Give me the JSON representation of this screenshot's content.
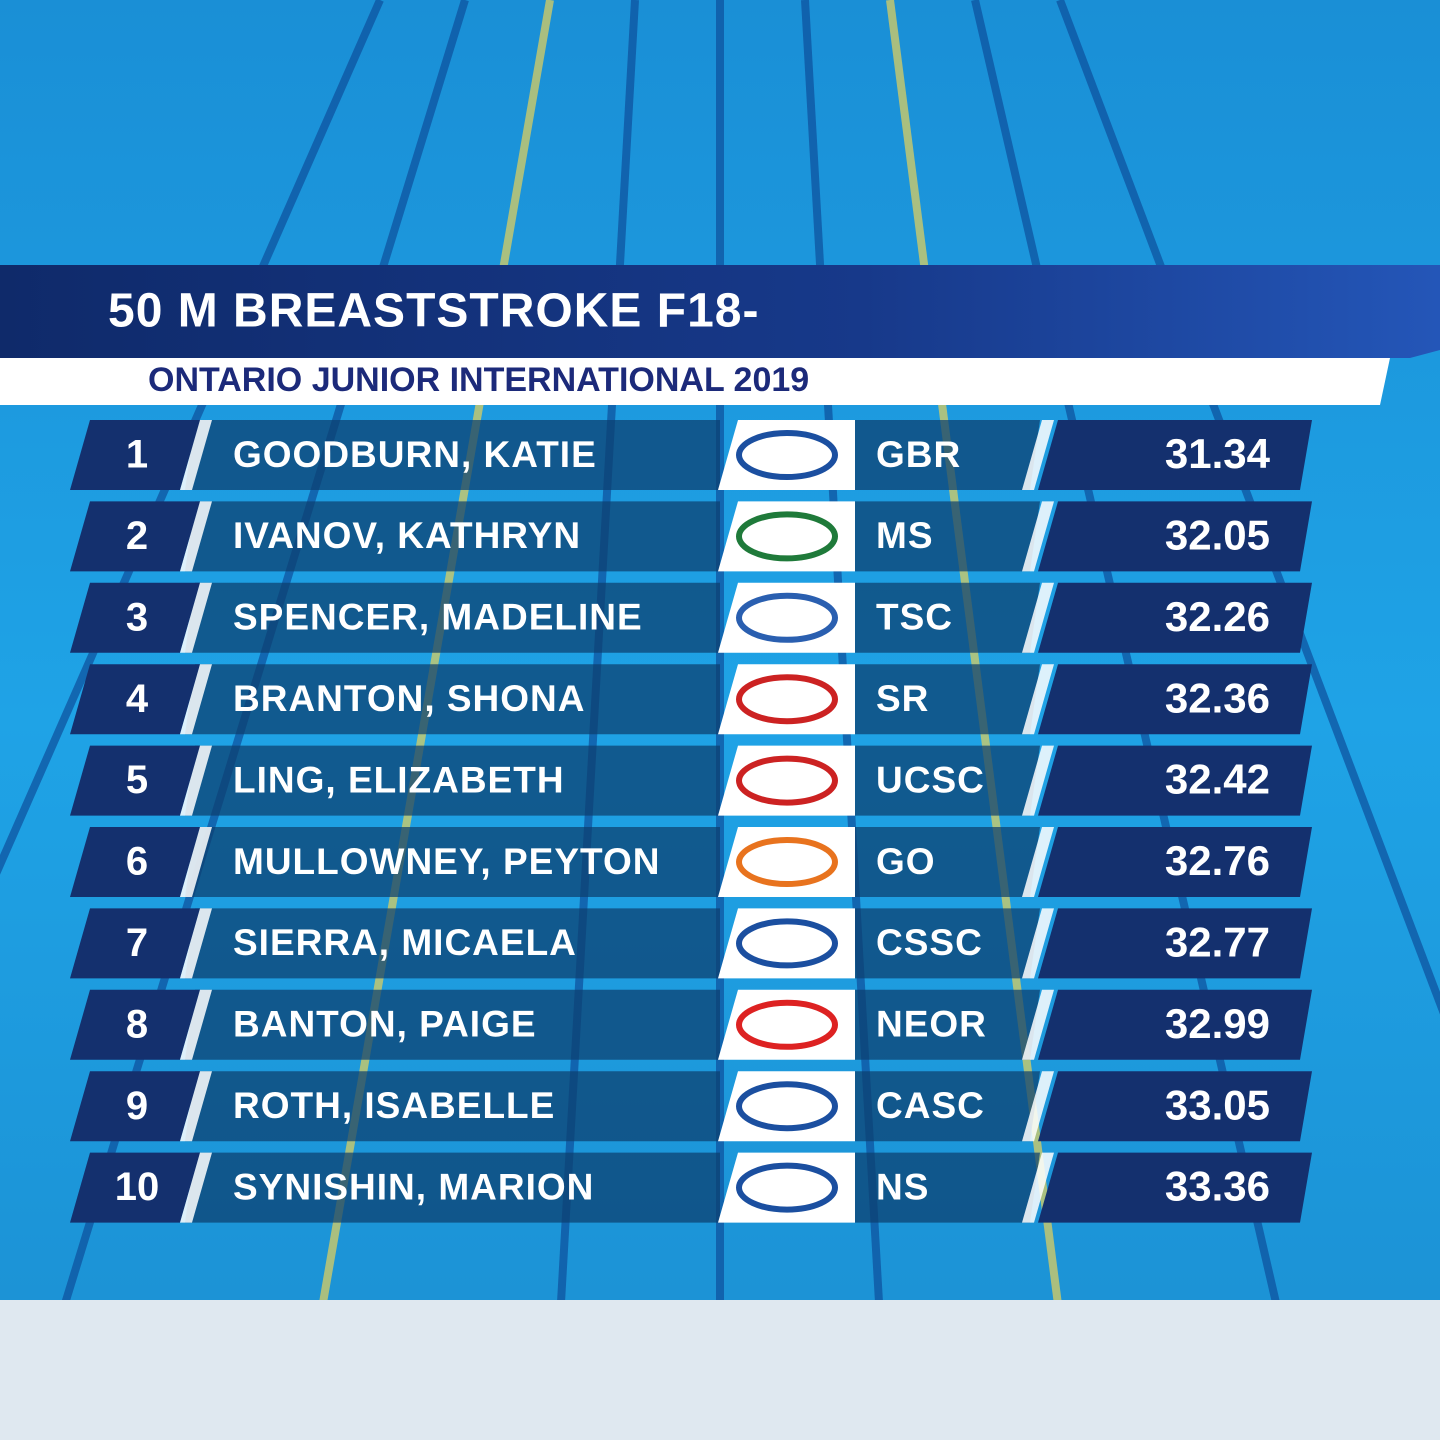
{
  "header": {
    "title": "50 M BREASTSTROKE F18-",
    "subtitle": "ONTARIO JUNIOR INTERNATIONAL 2019"
  },
  "results": [
    {
      "rank": 1,
      "name": "GOODBURN, KATIE",
      "club": "GBR",
      "time": 31.34
    },
    {
      "rank": 2,
      "name": "IVANOV, KATHRYN",
      "club": "MS",
      "time": 32.05
    },
    {
      "rank": 3,
      "name": "SPENCER, MADELINE",
      "club": "TSC",
      "time": 32.26
    },
    {
      "rank": 4,
      "name": "BRANTON, SHONA",
      "club": "SR",
      "time": 32.36
    },
    {
      "rank": 5,
      "name": "LING, ELIZABETH",
      "club": "UCSC",
      "time": 32.42
    },
    {
      "rank": 6,
      "name": "MULLOWNEY, PEYTON",
      "club": "GO",
      "time": 32.76
    },
    {
      "rank": 7,
      "name": "SIERRA, MICAELA",
      "club": "CSSC",
      "time": 32.77
    },
    {
      "rank": 8,
      "name": "BANTON, PAIGE",
      "club": "NEOR",
      "time": 32.99
    },
    {
      "rank": 9,
      "name": "ROTH, ISABELLE",
      "club": "CASC",
      "time": 33.05
    },
    {
      "rank": 10,
      "name": "SYNISHIN, MARION",
      "club": "NS",
      "time": 33.36
    }
  ]
}
